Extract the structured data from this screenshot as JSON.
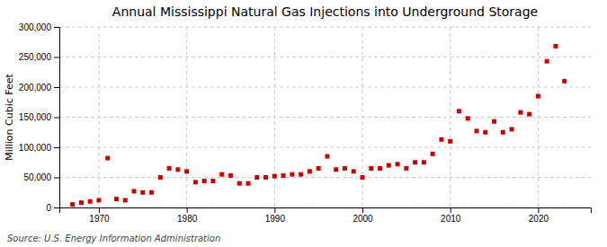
{
  "chart_data": {
    "type": "scatter",
    "title": "Annual Mississippi Natural Gas Injections into Underground Storage",
    "ylabel": "Million Cubic Feet",
    "annotations": [
      "Source: U.S. Energy Information Administration"
    ],
    "color": "#cc0000",
    "marker": "square",
    "grid": true,
    "x": [
      1967,
      1968,
      1969,
      1970,
      1971,
      1972,
      1973,
      1974,
      1975,
      1976,
      1977,
      1978,
      1979,
      1980,
      1981,
      1982,
      1983,
      1984,
      1985,
      1986,
      1987,
      1988,
      1989,
      1990,
      1991,
      1992,
      1993,
      1994,
      1995,
      1996,
      1997,
      1998,
      1999,
      2000,
      2001,
      2002,
      2003,
      2004,
      2005,
      2006,
      2007,
      2008,
      2009,
      2010,
      2011,
      2012,
      2013,
      2014,
      2015,
      2016,
      2017,
      2018,
      2019,
      2020,
      2021,
      2022,
      2023
    ],
    "values": [
      5000,
      8000,
      10000,
      12000,
      82000,
      14000,
      12000,
      27000,
      25000,
      25000,
      50000,
      65000,
      63000,
      60000,
      42000,
      44000,
      44000,
      55000,
      53000,
      40000,
      40000,
      50000,
      50000,
      52000,
      53000,
      55000,
      55000,
      60000,
      65000,
      85000,
      63000,
      65000,
      60000,
      50000,
      65000,
      65000,
      70000,
      72000,
      65000,
      75000,
      75000,
      89000,
      113000,
      110000,
      160000,
      148000,
      127000,
      125000,
      143000,
      125000,
      130000,
      158000,
      155000,
      185000,
      243000,
      268000,
      210000
    ],
    "xlim": [
      1965.5,
      2026
    ],
    "xticks": [
      1970,
      1980,
      1990,
      2000,
      2010,
      2020
    ],
    "ylim": [
      0,
      300000
    ],
    "yticks": [
      0,
      {
        "value": 50000,
        "label": "50,000"
      },
      {
        "value": 100000,
        "label": "100,000"
      },
      {
        "value": 150000,
        "label": "150,000"
      },
      {
        "value": 200000,
        "label": "200,000"
      },
      {
        "value": 250000,
        "label": "250,000"
      },
      {
        "value": 300000,
        "label": "300,000"
      }
    ]
  }
}
